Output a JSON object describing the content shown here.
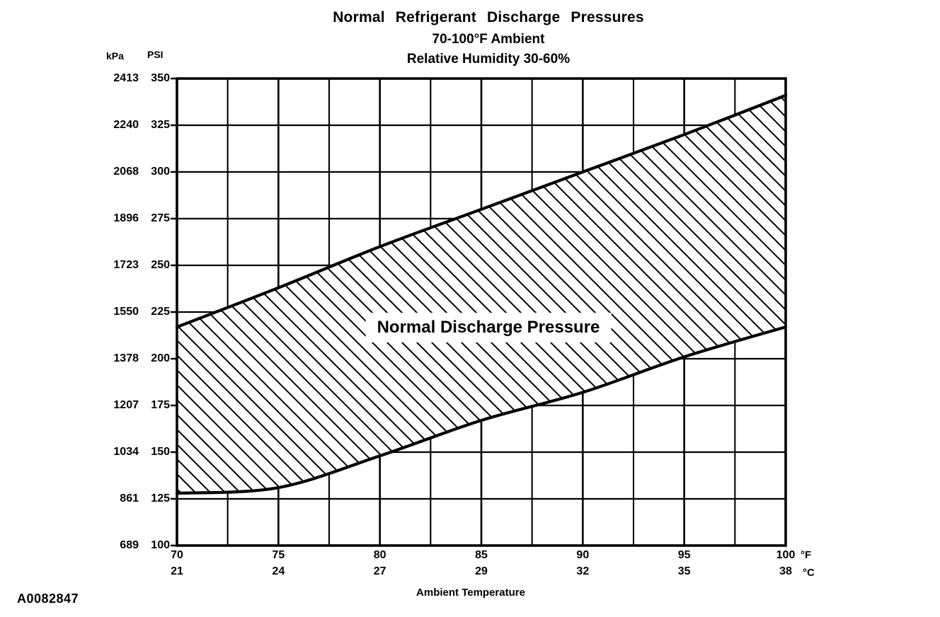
{
  "chart_data": {
    "type": "area",
    "title": "Normal Refrigerant Discharge Pressures",
    "subtitle1": "70-100°F Ambient",
    "subtitle2": "Relative Humidity 30-60%",
    "band_label": "Normal Discharge Pressure",
    "xlabel": "Ambient Temperature",
    "x_unit_primary": "°F",
    "x_unit_secondary": "°C",
    "y_axis_left_unit": "kPa",
    "y_axis_right_unit": "PSI",
    "x_ticks_f": [
      70,
      75,
      80,
      85,
      90,
      95,
      100
    ],
    "x_ticks_c": [
      21,
      24,
      27,
      29,
      32,
      35,
      38
    ],
    "y_ticks_psi": [
      350,
      325,
      300,
      275,
      250,
      225,
      200,
      175,
      150,
      125,
      100
    ],
    "y_ticks_kpa": [
      2413,
      2240,
      2068,
      1896,
      1723,
      1550,
      1378,
      1207,
      1034,
      861,
      689
    ],
    "xlim": [
      70,
      100
    ],
    "ylim_psi": [
      100,
      350
    ],
    "x_gridline_step_f": 2.5,
    "y_gridline_step_psi": 25,
    "grid": true,
    "series": [
      {
        "name": "upper-limit",
        "x": [
          70,
          75,
          80,
          85,
          90,
          95,
          100
        ],
        "psi": [
          217,
          238,
          260,
          280,
          300,
          320,
          341
        ]
      },
      {
        "name": "lower-limit",
        "x": [
          70,
          75,
          80,
          85,
          90,
          95,
          100
        ],
        "psi": [
          128,
          131,
          148,
          167,
          182,
          201,
          217
        ]
      }
    ],
    "footnote": "A0082847",
    "line_color": "#000000",
    "background_color": "#ffffff"
  }
}
